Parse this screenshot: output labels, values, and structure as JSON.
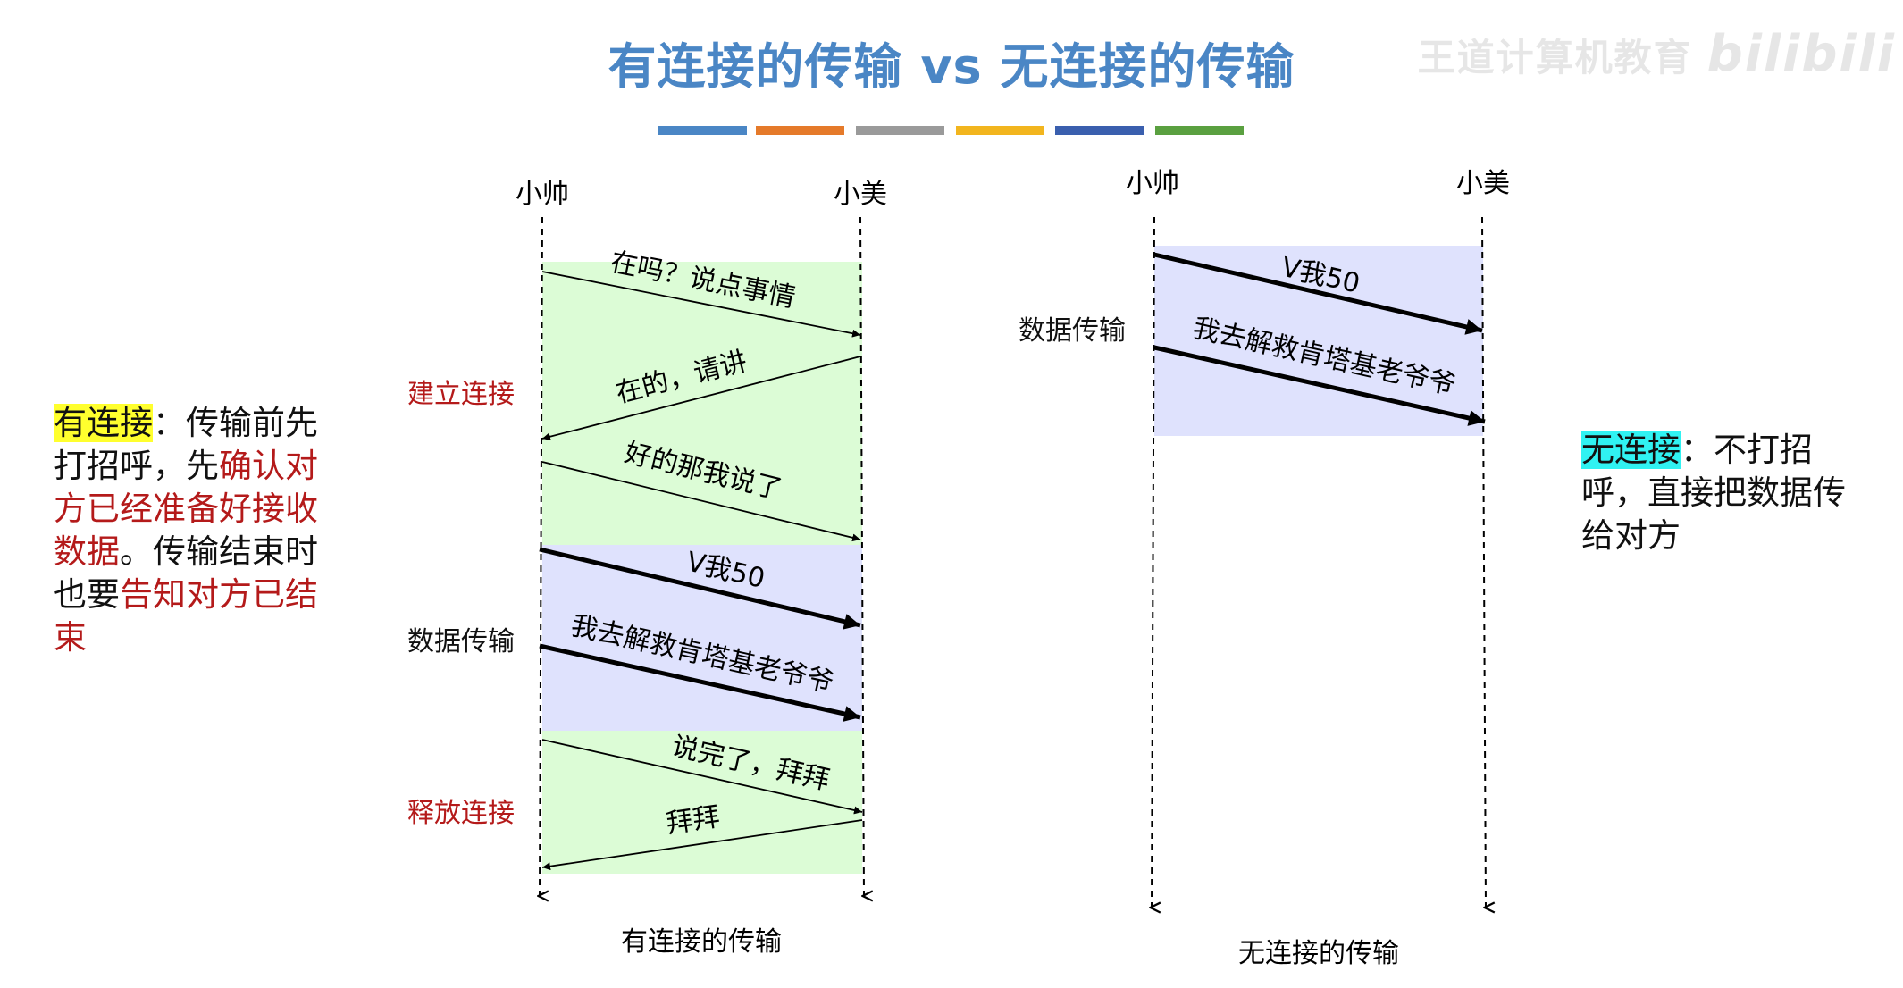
{
  "title": "有连接的传输 vs 无连接的传输",
  "watermark": {
    "text": "王道计算机教育",
    "logo": "bilibili"
  },
  "color_bar": [
    "#4a86c5",
    "#e57a2a",
    "#9a9a9a",
    "#f2b51e",
    "#3a5fae",
    "#5aa040"
  ],
  "colors": {
    "handshake_bg": "#dcfcd6",
    "data_bg": "#dfe2fd",
    "phase_red": "#b41a1a"
  },
  "connected": {
    "sender": "小帅",
    "receiver": "小美",
    "phases": {
      "establish": "建立连接",
      "data": "数据传输",
      "release": "释放连接"
    },
    "messages": [
      "在吗？说点事情",
      "在的，请讲",
      "好的那我说了",
      "V我50",
      "我去解救肯塔基老爷爷",
      "说完了，拜拜",
      "拜拜"
    ],
    "caption": "有连接的传输"
  },
  "connectionless": {
    "sender": "小帅",
    "receiver": "小美",
    "phase_data": "数据传输",
    "messages": [
      "V我50",
      "我去解救肯塔基老爷爷"
    ],
    "caption": "无连接的传输"
  },
  "note_left": {
    "term": "有连接",
    "colon": "：",
    "text1": "传输前先打招呼，先",
    "red1": "确认对方已经准备好接收数据",
    "text2": "。传输结束时也要",
    "red2": "告知对方已结束"
  },
  "note_right": {
    "term": "无连接",
    "colon": "：",
    "text": "不打招呼，直接把数据传给对方"
  }
}
